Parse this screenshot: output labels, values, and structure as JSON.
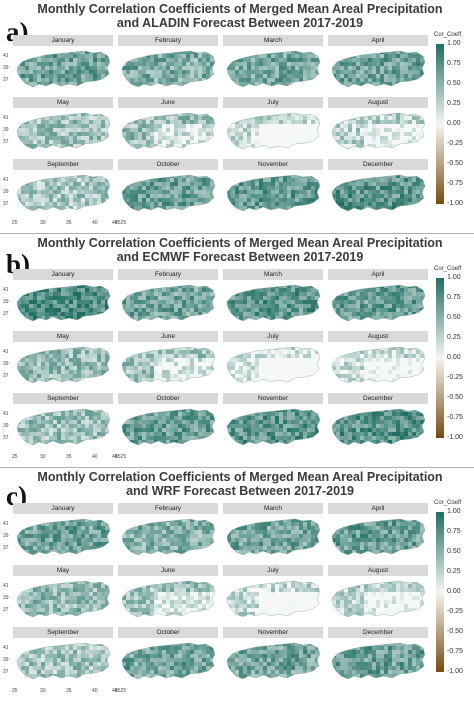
{
  "panels": [
    {
      "label": "a)",
      "title_line1": "Monthly Correlation Coefficients of Merged Mean Areal Precipitation",
      "title_line2": "and ALADIN Forecast Between 2017-2019"
    },
    {
      "label": "b)",
      "title_line1": "Monthly Correlation Coefficients of Merged Mean Areal Precipitation",
      "title_line2": "and ECMWF Forecast Between 2017-2019"
    },
    {
      "label": "c)",
      "title_line1": "Monthly Correlation Coefficients of Merged Mean Areal Precipitation",
      "title_line2": "and WRF Forecast Between 2017-2019"
    }
  ],
  "months": [
    "January",
    "February",
    "March",
    "April",
    "May",
    "June",
    "July",
    "August",
    "September",
    "October",
    "November",
    "December"
  ],
  "legend": {
    "title": "Cor_Coeff",
    "ticks": [
      "1.00",
      "0.75",
      "0.50",
      "0.25",
      "0.00",
      "-0.25",
      "-0.50",
      "-0.75",
      "-1.00"
    ],
    "colors": {
      "high": "#1f6e63",
      "mid": "#f5f5f0",
      "low": "#7a4a12"
    }
  },
  "y_ticks": [
    "41",
    "39",
    "37"
  ],
  "x_ticks": [
    "25",
    "30",
    "35",
    "40",
    "45",
    "4525"
  ],
  "intensity": {
    "a": [
      0.62,
      0.55,
      0.6,
      0.62,
      0.4,
      0.42,
      0.2,
      0.28,
      0.35,
      0.62,
      0.68,
      0.72
    ],
    "b": [
      0.78,
      0.6,
      0.7,
      0.66,
      0.42,
      0.38,
      0.14,
      0.2,
      0.42,
      0.66,
      0.7,
      0.72
    ],
    "c": [
      0.62,
      0.52,
      0.6,
      0.64,
      0.45,
      0.4,
      0.22,
      0.26,
      0.38,
      0.6,
      0.6,
      0.64
    ]
  }
}
